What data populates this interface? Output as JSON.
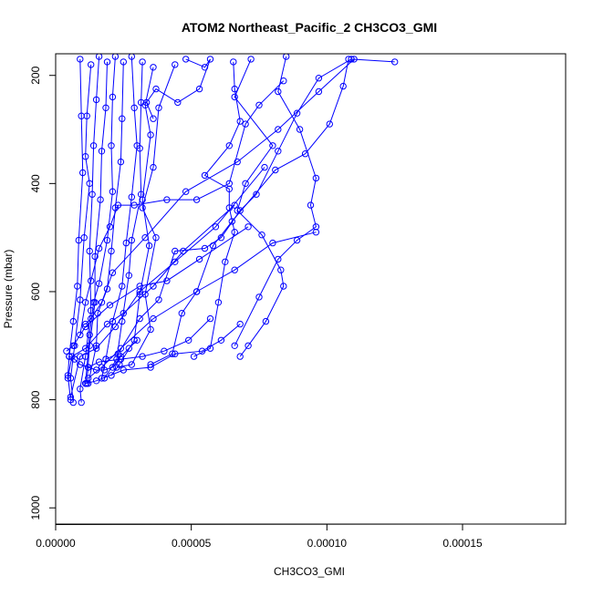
{
  "chart_data": {
    "type": "line",
    "title": "ATOM2 Northeast_Pacific_2 CH3CO3_GMI",
    "xlabel": "CH3CO3_GMI",
    "ylabel": "Pressure (mbar)",
    "xlim": [
      0,
      0.000188
    ],
    "ylim": [
      1030,
      160
    ],
    "y_reversed": true,
    "x_ticks": [
      0,
      5e-05,
      0.0001,
      0.00015
    ],
    "x_tick_labels": [
      "0.00000",
      "0.00005",
      "0.00010",
      "0.00015"
    ],
    "y_ticks": [
      200,
      400,
      600,
      800,
      1000
    ],
    "y_tick_labels": [
      "200",
      "400",
      "600",
      "800",
      "1000"
    ],
    "grid": false,
    "legend": "none",
    "marker": "open-circle",
    "colors": {
      "series": "#0000ff",
      "axis": "#000000",
      "background": "#ffffff"
    },
    "series": [
      {
        "points": [
          [
            9e-06,
            170
          ],
          [
            9.5e-06,
            275
          ],
          [
            1e-05,
            380
          ],
          [
            8.5e-06,
            505
          ],
          [
            8e-06,
            590
          ],
          [
            6.5e-06,
            655
          ],
          [
            5e-06,
            720
          ],
          [
            4.5e-06,
            755
          ],
          [
            5.5e-06,
            800
          ]
        ]
      },
      {
        "points": [
          [
            1.3e-05,
            180
          ],
          [
            1.15e-05,
            275
          ],
          [
            1.1e-05,
            350
          ],
          [
            1.25e-05,
            400
          ],
          [
            1.05e-05,
            500
          ],
          [
            9e-06,
            615
          ],
          [
            7e-06,
            700
          ],
          [
            5.5e-06,
            760
          ],
          [
            6.5e-06,
            805
          ]
        ]
      },
      {
        "points": [
          [
            1.6e-05,
            165
          ],
          [
            1.5e-05,
            245
          ],
          [
            1.4e-05,
            330
          ],
          [
            1.35e-05,
            420
          ],
          [
            1.25e-05,
            525
          ],
          [
            1.3e-05,
            635
          ],
          [
            1.1e-05,
            720
          ],
          [
            9e-06,
            780
          ],
          [
            9.5e-06,
            805
          ]
        ]
      },
      {
        "points": [
          [
            1.9e-05,
            175
          ],
          [
            1.85e-05,
            260
          ],
          [
            1.7e-05,
            340
          ],
          [
            1.65e-05,
            430
          ],
          [
            1.45e-05,
            535
          ],
          [
            1.45e-05,
            620
          ],
          [
            1.25e-05,
            700
          ],
          [
            1.15e-05,
            770
          ]
        ]
      },
      {
        "points": [
          [
            2.2e-05,
            165
          ],
          [
            2.1e-05,
            240
          ],
          [
            2.05e-05,
            330
          ],
          [
            2.1e-05,
            415
          ],
          [
            1.9e-05,
            505
          ],
          [
            1.6e-05,
            585
          ],
          [
            1.4e-05,
            620
          ],
          [
            1.25e-05,
            680
          ],
          [
            1.1e-05,
            770
          ]
        ]
      },
      {
        "points": [
          [
            2.5e-05,
            175
          ],
          [
            2.45e-05,
            280
          ],
          [
            2.4e-05,
            360
          ],
          [
            2.2e-05,
            445
          ],
          [
            2.05e-05,
            525
          ],
          [
            1.9e-05,
            595
          ],
          [
            1.55e-05,
            640
          ],
          [
            1.5e-05,
            700
          ],
          [
            1.2e-05,
            770
          ]
        ]
      },
      {
        "points": [
          [
            2.8e-05,
            165
          ],
          [
            2.9e-05,
            260
          ],
          [
            3e-05,
            330
          ],
          [
            2.8e-05,
            425
          ],
          [
            2.6e-05,
            510
          ],
          [
            2.45e-05,
            590
          ],
          [
            2.1e-05,
            655
          ],
          [
            1.85e-05,
            725
          ],
          [
            1.7e-05,
            760
          ]
        ]
      },
      {
        "points": [
          [
            3.2e-05,
            175
          ],
          [
            3.15e-05,
            250
          ],
          [
            3.1e-05,
            335
          ],
          [
            3.15e-05,
            420
          ],
          [
            2.8e-05,
            505
          ],
          [
            2.7e-05,
            570
          ],
          [
            2.45e-05,
            655
          ],
          [
            2.25e-05,
            725
          ],
          [
            1.8e-05,
            760
          ]
        ]
      },
      {
        "points": [
          [
            3.6e-05,
            185
          ],
          [
            3.3e-05,
            255
          ],
          [
            3.5e-05,
            310
          ],
          [
            3.2e-05,
            430
          ],
          [
            3.45e-05,
            515
          ],
          [
            3.1e-05,
            605
          ],
          [
            2.9e-05,
            690
          ],
          [
            2.35e-05,
            735
          ],
          [
            2.05e-05,
            755
          ]
        ]
      },
      {
        "points": [
          [
            4.4e-05,
            180
          ],
          [
            3.8e-05,
            260
          ],
          [
            3.6e-05,
            370
          ],
          [
            3.2e-05,
            445
          ],
          [
            3.7e-05,
            500
          ],
          [
            3.3e-05,
            605
          ],
          [
            3.5e-05,
            670
          ],
          [
            2.8e-05,
            735
          ],
          [
            2.25e-05,
            740
          ]
        ]
      },
      {
        "points": [
          [
            4.8e-05,
            170
          ],
          [
            5.5e-05,
            185
          ],
          [
            5.7e-05,
            170
          ],
          [
            5.3e-05,
            225
          ],
          [
            4.5e-05,
            250
          ],
          [
            3.7e-05,
            225
          ],
          [
            3.35e-05,
            250
          ],
          [
            3.6e-05,
            280
          ]
        ]
      },
      {
        "points": [
          [
            6.55e-05,
            175
          ],
          [
            6.6e-05,
            225
          ],
          [
            6.8e-05,
            285
          ],
          [
            6.4e-05,
            330
          ],
          [
            5.5e-05,
            385
          ],
          [
            6.4e-05,
            410
          ],
          [
            6.4e-05,
            445
          ],
          [
            6.6e-05,
            490
          ],
          [
            6.25e-05,
            545
          ],
          [
            6e-05,
            620
          ],
          [
            5.7e-05,
            705
          ],
          [
            5.1e-05,
            720
          ]
        ]
      },
      {
        "points": [
          [
            7.2e-05,
            170
          ],
          [
            6.6e-05,
            240
          ],
          [
            8e-05,
            330
          ],
          [
            7e-05,
            400
          ],
          [
            6.7e-05,
            450
          ],
          [
            7.6e-05,
            495
          ],
          [
            8.3e-05,
            560
          ],
          [
            8.4e-05,
            590
          ],
          [
            7.75e-05,
            655
          ],
          [
            7.1e-05,
            700
          ],
          [
            6.8e-05,
            720
          ]
        ]
      },
      {
        "points": [
          [
            8.5e-05,
            165
          ],
          [
            8.2e-05,
            230
          ],
          [
            9e-05,
            300
          ],
          [
            9.6e-05,
            390
          ],
          [
            9.4e-05,
            440
          ],
          [
            9.6e-05,
            480
          ],
          [
            8.9e-05,
            505
          ],
          [
            8.2e-05,
            540
          ],
          [
            7.5e-05,
            610
          ],
          [
            6.6e-05,
            700
          ]
        ]
      },
      {
        "points": [
          [
            0.000108,
            170
          ],
          [
            0.000106,
            220
          ],
          [
            0.000101,
            290
          ],
          [
            9.2e-05,
            345
          ],
          [
            8.1e-05,
            375
          ],
          [
            6.5e-05,
            470
          ],
          [
            5.8e-05,
            515
          ],
          [
            5.2e-05,
            600
          ],
          [
            4.65e-05,
            640
          ],
          [
            4.3e-05,
            715
          ],
          [
            3.5e-05,
            735
          ]
        ]
      },
      {
        "points": [
          [
            0.000125,
            175
          ],
          [
            0.000109,
            170
          ],
          [
            9.7e-05,
            205
          ],
          [
            8.9e-05,
            270
          ],
          [
            8.2e-05,
            340
          ],
          [
            7.4e-05,
            420
          ],
          [
            6.8e-05,
            450
          ],
          [
            6.1e-05,
            500
          ],
          [
            5.5e-05,
            520
          ],
          [
            4.4e-05,
            525
          ],
          [
            3.8e-05,
            615
          ],
          [
            3.1e-05,
            650
          ],
          [
            2.3e-05,
            715
          ],
          [
            1.85e-05,
            725
          ]
        ]
      },
      {
        "points": [
          [
            8.4e-05,
            210
          ],
          [
            7.5e-05,
            255
          ],
          [
            7e-05,
            290
          ],
          [
            6.4e-05,
            400
          ],
          [
            5.2e-05,
            430
          ],
          [
            4.1e-05,
            430
          ],
          [
            2.9e-05,
            440
          ],
          [
            2.3e-05,
            440
          ],
          [
            2e-05,
            480
          ],
          [
            1.6e-05,
            520
          ],
          [
            1.3e-05,
            580
          ],
          [
            1.1e-05,
            620
          ],
          [
            9e-06,
            680
          ]
        ]
      },
      {
        "points": [
          [
            0.00011,
            170
          ],
          [
            9.7e-05,
            230
          ],
          [
            8.2e-05,
            300
          ],
          [
            6.7e-05,
            360
          ],
          [
            4.8e-05,
            415
          ],
          [
            3.3e-05,
            500
          ],
          [
            2.1e-05,
            565
          ],
          [
            1.7e-05,
            620
          ],
          [
            1.3e-05,
            650
          ],
          [
            1.1e-05,
            660
          ]
        ]
      },
      {
        "points": [
          [
            9.6e-05,
            490
          ],
          [
            8e-05,
            510
          ],
          [
            6.6e-05,
            560
          ],
          [
            5.2e-05,
            600
          ],
          [
            3.6e-05,
            650
          ],
          [
            2.4e-05,
            705
          ],
          [
            1.7e-05,
            740
          ],
          [
            1.2e-05,
            760
          ]
        ]
      },
      {
        "points": [
          [
            7.1e-05,
            480
          ],
          [
            5.3e-05,
            540
          ],
          [
            4.1e-05,
            580
          ],
          [
            3.1e-05,
            590
          ],
          [
            2e-05,
            625
          ],
          [
            1.1e-05,
            665
          ],
          [
            6.5e-06,
            700
          ],
          [
            4e-06,
            710
          ]
        ]
      },
      {
        "points": [
          [
            6.6e-05,
            440
          ],
          [
            4.7e-05,
            525
          ],
          [
            3.6e-05,
            590
          ],
          [
            2.5e-05,
            640
          ],
          [
            1.9e-05,
            660
          ],
          [
            1.1e-05,
            705
          ],
          [
            6e-06,
            720
          ],
          [
            4.5e-06,
            760
          ]
        ]
      },
      {
        "points": [
          [
            7.7e-05,
            370
          ],
          [
            5.9e-05,
            480
          ],
          [
            4.4e-05,
            545
          ],
          [
            3.1e-05,
            600
          ],
          [
            2.2e-05,
            665
          ],
          [
            1.5e-05,
            705
          ],
          [
            9e-06,
            720
          ],
          [
            5.5e-06,
            795
          ]
        ]
      },
      {
        "points": [
          [
            6.8e-05,
            660
          ],
          [
            6.1e-05,
            690
          ],
          [
            5.4e-05,
            710
          ],
          [
            4.4e-05,
            715
          ],
          [
            3.5e-05,
            740
          ],
          [
            2.5e-05,
            745
          ],
          [
            1.5e-05,
            765
          ],
          [
            1.1e-05,
            770
          ]
        ]
      },
      {
        "points": [
          [
            5.7e-05,
            650
          ],
          [
            4.9e-05,
            690
          ],
          [
            4e-05,
            710
          ],
          [
            3.2e-05,
            720
          ],
          [
            2.4e-05,
            725
          ],
          [
            1.6e-05,
            730
          ],
          [
            1.2e-05,
            740
          ]
        ]
      },
      {
        "points": [
          [
            5e-06,
            720
          ],
          [
            7e-06,
            725
          ],
          [
            9e-06,
            735
          ],
          [
            1.2e-05,
            740
          ],
          [
            1.5e-05,
            745
          ],
          [
            1.8e-05,
            745
          ],
          [
            2.1e-05,
            740
          ],
          [
            2.4e-05,
            720
          ],
          [
            2.7e-05,
            705
          ],
          [
            3e-05,
            690
          ]
        ]
      }
    ]
  }
}
